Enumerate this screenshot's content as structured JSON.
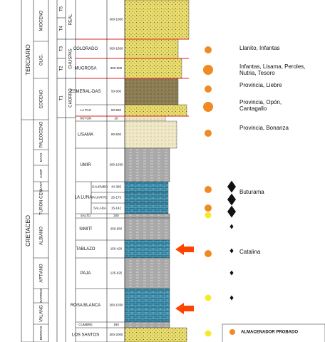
{
  "eras": [
    {
      "label": "TERCIARIO"
    },
    {
      "label": "CRETACEO"
    }
  ],
  "epochs": [
    {
      "label": "MIOCENO"
    },
    {
      "label": "OLIG."
    },
    {
      "label": "EOCENO"
    },
    {
      "label": "PALEOCENO"
    },
    {
      "label": "MAAS"
    },
    {
      "label": "CAMP"
    },
    {
      "label": "SANT"
    },
    {
      "label": "TURON CEN"
    },
    {
      "label": "ALBIANO"
    },
    {
      "label": "APTIANO"
    },
    {
      "label": "BARREM"
    },
    {
      "label": "VALANG"
    },
    {
      "label": "BERRIAS"
    }
  ],
  "units": [
    {
      "label": "T5"
    },
    {
      "label": "T4"
    },
    {
      "label": "T3"
    },
    {
      "label": "T2"
    },
    {
      "label": "T1"
    }
  ],
  "groups": [
    {
      "label": "REAL"
    },
    {
      "label": "CHUSPAS"
    },
    {
      "label": "CHORRO"
    }
  ],
  "formations": [
    {
      "name": "",
      "thickness": "300-1000"
    },
    {
      "name": "COLORADO",
      "thickness": "300-1500"
    },
    {
      "name": "MUGROSA",
      "thickness": "350-800"
    },
    {
      "name": "ESMERAL-DAS",
      "thickness": "50-500"
    },
    {
      "name": "LA PAZ",
      "thickness": "50-550"
    },
    {
      "name": "HOYON",
      "thickness": "20"
    },
    {
      "name": "LISAMA",
      "thickness": "80-600"
    },
    {
      "name": "UMIR",
      "thickness": "200-1030"
    },
    {
      "name": "GALEMBO",
      "thickness": "44-385"
    },
    {
      "name": "PAJARITO",
      "thickness": "25-173"
    },
    {
      "name": "SALADA",
      "thickness": "15-142"
    },
    {
      "name": "SALTO",
      "thickness": "200"
    },
    {
      "name": "SIMITÍ",
      "thickness": "250-650"
    },
    {
      "name": "TABLAZO",
      "thickness": "150-420"
    },
    {
      "name": "PAJA",
      "thickness": "125-625"
    },
    {
      "name": "ROSA BLANCA",
      "thickness": "300-1030"
    },
    {
      "name": "CUMBRE",
      "thickness": "180"
    },
    {
      "name": "LOS SANTOS",
      "thickness": "300-2000"
    }
  ],
  "la_luna": "LA LUNA",
  "fields": [
    "Llanito, Infantas",
    "Infantas, Lisama, Peroles, Nutria, Tesoro",
    "Provincia, Liebre",
    "Provincia, Opón, Cantagallo",
    "Provincia, Bonanza",
    "Buturama",
    "Catalina"
  ],
  "legend": {
    "label": "ALMACENADOR PROBADO"
  }
}
